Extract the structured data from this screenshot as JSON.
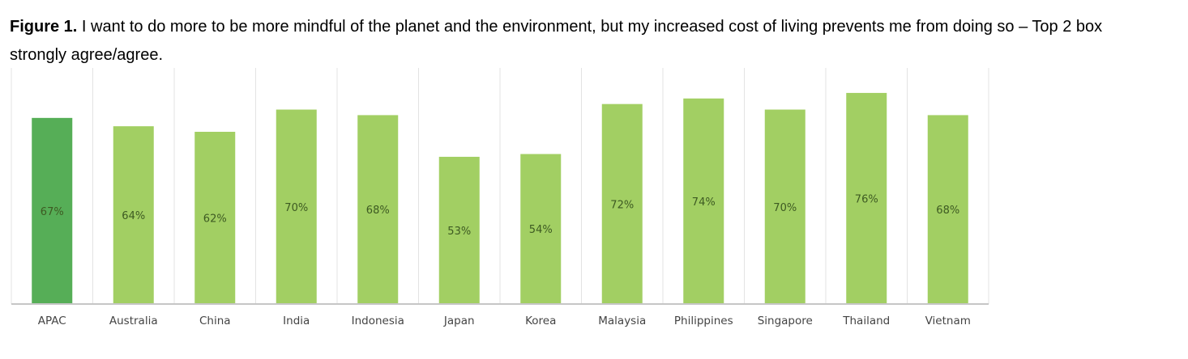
{
  "caption": {
    "label": "Figure 1.",
    "text": " I want to do more to be more mindful of the planet and the environment, but my increased cost of living prevents me from doing so – Top 2 box strongly agree/agree."
  },
  "colors": {
    "highlight_bar": "#56ae57",
    "bar": "#a2cf63",
    "gridline": "#e3e3e3",
    "baseline": "#c6c6c6"
  },
  "chart_data": {
    "type": "bar",
    "title": "",
    "xlabel": "",
    "ylabel": "",
    "categories": [
      "APAC",
      "Australia",
      "China",
      "India",
      "Indonesia",
      "Japan",
      "Korea",
      "Malaysia",
      "Philippines",
      "Singapore",
      "Thailand",
      "Vietnam"
    ],
    "values": [
      67,
      64,
      62,
      70,
      68,
      53,
      54,
      72,
      74,
      70,
      76,
      68
    ],
    "data_labels": [
      "67%",
      "64%",
      "62%",
      "70%",
      "68%",
      "53%",
      "54%",
      "72%",
      "74%",
      "70%",
      "76%",
      "68%"
    ],
    "highlight_category": "APAC",
    "ylim": [
      0,
      85
    ],
    "grid": "vertical separators",
    "legend": "none"
  }
}
